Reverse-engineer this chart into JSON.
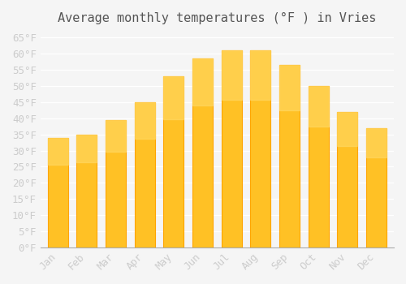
{
  "title": "Average monthly temperatures (°F ) in Vries",
  "months": [
    "Jan",
    "Feb",
    "Mar",
    "Apr",
    "May",
    "Jun",
    "Jul",
    "Aug",
    "Sep",
    "Oct",
    "Nov",
    "Dec"
  ],
  "values": [
    34,
    35,
    39.5,
    45,
    53,
    58.5,
    61,
    61,
    56.5,
    50,
    42,
    37
  ],
  "bar_color_face": "#FFC125",
  "bar_color_edge": "#FFA500",
  "bar_gradient_top": "#FFD966",
  "background_color": "#f5f5f5",
  "grid_color": "#ffffff",
  "text_color": "#cccccc",
  "ylim": [
    0,
    67
  ],
  "yticks": [
    0,
    5,
    10,
    15,
    20,
    25,
    30,
    35,
    40,
    45,
    50,
    55,
    60,
    65
  ],
  "ytick_labels": [
    "0°F",
    "5°F",
    "10°F",
    "15°F",
    "20°F",
    "25°F",
    "30°F",
    "35°F",
    "40°F",
    "45°F",
    "50°F",
    "55°F",
    "60°F",
    "65°F"
  ],
  "title_fontsize": 11,
  "tick_fontsize": 9,
  "font_family": "monospace"
}
